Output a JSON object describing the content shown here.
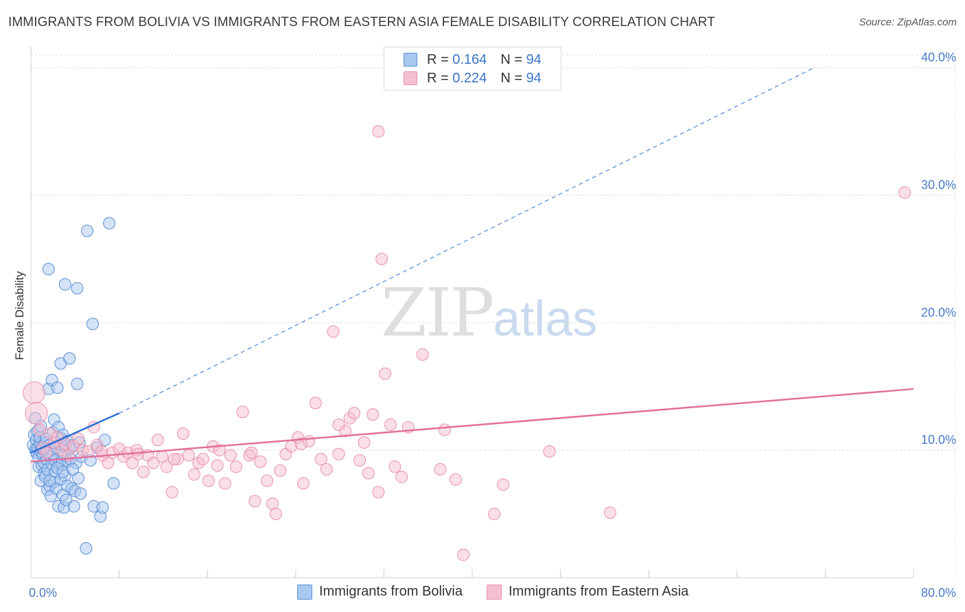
{
  "title": "IMMIGRANTS FROM BOLIVIA VS IMMIGRANTS FROM EASTERN ASIA FEMALE DISABILITY CORRELATION CHART",
  "source": "Source: ZipAtlas.com",
  "watermark": {
    "zip": "ZIP",
    "atlas": "atlas"
  },
  "legend": {
    "rows": [
      {
        "r_label": "R = ",
        "r_value": "0.164",
        "n_label": "N = ",
        "n_value": "94"
      },
      {
        "r_label": "R = ",
        "r_value": "0.224",
        "n_label": "N = ",
        "n_value": "94"
      }
    ]
  },
  "bottom_legend": [
    "Immigrants from Bolivia",
    "Immigrants from Eastern Asia"
  ],
  "colors": {
    "bolivia_fill": "#a9c8f0",
    "bolivia_stroke": "#5b8fd6",
    "bolivia_line": "#2a6fd4",
    "easia_fill": "#f6bfd0",
    "easia_stroke": "#e890ad",
    "easia_line": "#e2709a",
    "tick_text": "#4a7cc6",
    "grid": "#dcdcdc"
  },
  "chart_data": {
    "type": "scatter",
    "xlabel": "",
    "ylabel": "Female Disability",
    "xlim": [
      0,
      80
    ],
    "ylim": [
      0,
      41
    ],
    "x_tick_labels": [
      "0.0%",
      "80.0%"
    ],
    "y_ticks": [
      10,
      20,
      30,
      40
    ],
    "y_tick_labels": [
      "10.0%",
      "20.0%",
      "30.0%",
      "40.0%"
    ],
    "grid": true,
    "series": [
      {
        "name": "Immigrants from Bolivia",
        "trend": {
          "x0": 0,
          "y0": 9.8,
          "x1": 8,
          "y1": 12.9,
          "dashed_to_x": 71,
          "dashed_to_y": 40.0
        },
        "points": [
          [
            0.2,
            10.4
          ],
          [
            0.3,
            11.2
          ],
          [
            0.4,
            10.0
          ],
          [
            0.4,
            12.5
          ],
          [
            0.5,
            9.8
          ],
          [
            0.5,
            10.8
          ],
          [
            0.6,
            11.5
          ],
          [
            0.6,
            10.2
          ],
          [
            0.7,
            8.7
          ],
          [
            0.7,
            9.4
          ],
          [
            0.8,
            10.5
          ],
          [
            0.8,
            11.0
          ],
          [
            0.9,
            7.6
          ],
          [
            0.9,
            9.9
          ],
          [
            1.0,
            10.3
          ],
          [
            1.0,
            8.8
          ],
          [
            1.1,
            9.6
          ],
          [
            1.1,
            10.1
          ],
          [
            1.2,
            8.2
          ],
          [
            1.2,
            9.0
          ],
          [
            1.3,
            10.6
          ],
          [
            1.3,
            7.9
          ],
          [
            1.4,
            9.3
          ],
          [
            1.4,
            10.9
          ],
          [
            1.5,
            8.5
          ],
          [
            1.5,
            6.9
          ],
          [
            1.6,
            9.8
          ],
          [
            1.6,
            14.8
          ],
          [
            1.7,
            7.2
          ],
          [
            1.7,
            10.4
          ],
          [
            1.8,
            6.4
          ],
          [
            1.8,
            9.5
          ],
          [
            1.9,
            8.9
          ],
          [
            1.9,
            15.5
          ],
          [
            2.0,
            9.7
          ],
          [
            2.0,
            11.4
          ],
          [
            2.1,
            7.5
          ],
          [
            2.1,
            12.4
          ],
          [
            2.2,
            8.3
          ],
          [
            2.2,
            9.2
          ],
          [
            2.3,
            10.2
          ],
          [
            2.3,
            7.0
          ],
          [
            2.4,
            14.9
          ],
          [
            2.4,
            8.6
          ],
          [
            2.5,
            11.8
          ],
          [
            2.5,
            5.6
          ],
          [
            2.6,
            9.0
          ],
          [
            2.6,
            10.5
          ],
          [
            2.7,
            16.8
          ],
          [
            2.7,
            7.7
          ],
          [
            2.8,
            8.9
          ],
          [
            2.8,
            10.9
          ],
          [
            2.9,
            6.5
          ],
          [
            2.9,
            11.2
          ],
          [
            3.0,
            5.5
          ],
          [
            3.0,
            9.6
          ],
          [
            3.1,
            8.0
          ],
          [
            3.1,
            10.3
          ],
          [
            3.2,
            6.1
          ],
          [
            3.3,
            10.7
          ],
          [
            3.3,
            7.2
          ],
          [
            3.4,
            9.1
          ],
          [
            3.5,
            17.2
          ],
          [
            3.5,
            10.1
          ],
          [
            3.6,
            9.3
          ],
          [
            3.7,
            7.0
          ],
          [
            3.8,
            10.4
          ],
          [
            3.9,
            5.6
          ],
          [
            4.0,
            6.8
          ],
          [
            4.1,
            9.0
          ],
          [
            4.2,
            15.2
          ],
          [
            4.3,
            7.8
          ],
          [
            4.4,
            10.6
          ],
          [
            4.5,
            6.6
          ],
          [
            4.6,
            9.5
          ],
          [
            5.0,
            2.3
          ],
          [
            5.1,
            27.2
          ],
          [
            5.4,
            9.2
          ],
          [
            5.6,
            19.9
          ],
          [
            5.7,
            5.6
          ],
          [
            6.0,
            10.2
          ],
          [
            6.3,
            4.8
          ],
          [
            6.5,
            5.5
          ],
          [
            6.7,
            10.8
          ],
          [
            7.1,
            27.8
          ],
          [
            7.5,
            7.4
          ],
          [
            1.6,
            24.2
          ],
          [
            2.4,
            8.6
          ],
          [
            3.1,
            23.0
          ],
          [
            4.2,
            22.7
          ],
          [
            0.9,
            11.9
          ],
          [
            1.7,
            7.6
          ],
          [
            2.9,
            8.3
          ],
          [
            3.8,
            8.5
          ]
        ]
      },
      {
        "name": "Immigrants from Eastern Asia",
        "trend": {
          "x0": 0,
          "y0": 9.1,
          "x1": 80,
          "y1": 14.8
        },
        "points": [
          [
            0.3,
            14.5
          ],
          [
            0.5,
            12.9
          ],
          [
            0.8,
            11.6
          ],
          [
            1.1,
            10.2
          ],
          [
            1.4,
            9.8
          ],
          [
            1.8,
            11.3
          ],
          [
            2.1,
            10.6
          ],
          [
            2.4,
            11.0
          ],
          [
            2.8,
            10.0
          ],
          [
            3.1,
            10.5
          ],
          [
            3.4,
            9.6
          ],
          [
            3.9,
            10.3
          ],
          [
            4.3,
            10.9
          ],
          [
            4.7,
            10.0
          ],
          [
            5.2,
            9.9
          ],
          [
            5.7,
            11.8
          ],
          [
            6.0,
            10.4
          ],
          [
            6.5,
            9.6
          ],
          [
            7.0,
            9.0
          ],
          [
            7.4,
            9.8
          ],
          [
            8.0,
            10.1
          ],
          [
            8.4,
            9.5
          ],
          [
            8.8,
            9.8
          ],
          [
            9.2,
            9.0
          ],
          [
            9.6,
            10.0
          ],
          [
            10.2,
            8.3
          ],
          [
            10.6,
            9.6
          ],
          [
            11.1,
            9.0
          ],
          [
            11.5,
            10.8
          ],
          [
            11.9,
            9.5
          ],
          [
            12.3,
            8.7
          ],
          [
            12.8,
            6.7
          ],
          [
            13.3,
            9.3
          ],
          [
            13.8,
            11.3
          ],
          [
            14.3,
            9.6
          ],
          [
            14.8,
            8.1
          ],
          [
            15.2,
            9.0
          ],
          [
            15.6,
            9.3
          ],
          [
            16.1,
            7.6
          ],
          [
            16.5,
            10.3
          ],
          [
            17.1,
            10.0
          ],
          [
            17.6,
            7.4
          ],
          [
            18.1,
            9.6
          ],
          [
            18.6,
            8.7
          ],
          [
            19.2,
            13.0
          ],
          [
            19.8,
            9.6
          ],
          [
            20.3,
            6.0
          ],
          [
            20.8,
            9.1
          ],
          [
            21.4,
            7.6
          ],
          [
            21.9,
            5.8
          ],
          [
            22.2,
            5.0
          ],
          [
            22.6,
            8.4
          ],
          [
            23.1,
            9.7
          ],
          [
            23.6,
            10.3
          ],
          [
            24.2,
            11.0
          ],
          [
            24.7,
            7.4
          ],
          [
            25.2,
            10.7
          ],
          [
            25.8,
            13.7
          ],
          [
            26.3,
            9.3
          ],
          [
            26.8,
            8.5
          ],
          [
            27.4,
            19.3
          ],
          [
            27.9,
            9.7
          ],
          [
            28.5,
            11.5
          ],
          [
            28.9,
            12.5
          ],
          [
            29.3,
            12.9
          ],
          [
            29.8,
            9.2
          ],
          [
            30.2,
            10.6
          ],
          [
            30.6,
            8.2
          ],
          [
            31.0,
            12.8
          ],
          [
            31.5,
            6.7
          ],
          [
            31.8,
            25.0
          ],
          [
            32.1,
            16.0
          ],
          [
            32.6,
            12.0
          ],
          [
            33.0,
            8.7
          ],
          [
            33.6,
            7.9
          ],
          [
            34.2,
            11.8
          ],
          [
            35.5,
            17.5
          ],
          [
            37.1,
            8.5
          ],
          [
            37.5,
            11.6
          ],
          [
            38.5,
            7.7
          ],
          [
            42.0,
            5.0
          ],
          [
            42.8,
            7.3
          ],
          [
            47.0,
            9.9
          ],
          [
            52.5,
            5.1
          ],
          [
            79.2,
            30.2
          ],
          [
            31.5,
            35.0
          ],
          [
            39.2,
            1.8
          ],
          [
            27.9,
            12.0
          ],
          [
            24.5,
            10.5
          ],
          [
            20.0,
            9.8
          ],
          [
            16.9,
            8.8
          ],
          [
            13.0,
            9.3
          ],
          [
            9.7,
            9.7
          ],
          [
            6.4,
            9.9
          ]
        ]
      }
    ]
  }
}
